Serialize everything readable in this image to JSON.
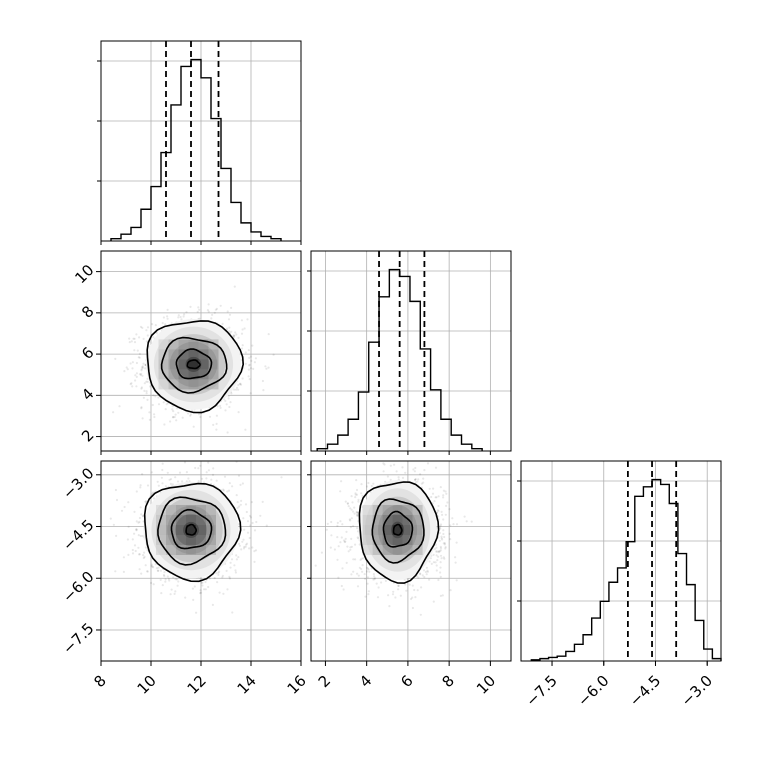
{
  "chart_data": {
    "type": "corner",
    "parameters": [
      {
        "index": 0,
        "range": [
          8,
          16
        ],
        "ticks": [
          8,
          10,
          12,
          14,
          16
        ],
        "tick_labels": [
          "8",
          "10",
          "12",
          "14",
          "16"
        ],
        "mean": 11.6,
        "std": 1.0,
        "quantiles": [
          10.6,
          11.6,
          12.7
        ]
      },
      {
        "index": 1,
        "range": [
          1.3,
          11.0
        ],
        "ticks": [
          2,
          4,
          6,
          8,
          10
        ],
        "tick_labels": [
          "2",
          "4",
          "6",
          "8",
          "10"
        ],
        "mean": 5.6,
        "std": 1.1,
        "quantiles": [
          4.6,
          5.6,
          6.8
        ]
      },
      {
        "index": 2,
        "range": [
          -8.4,
          -2.6
        ],
        "ticks": [
          -7.5,
          -6.0,
          -4.5,
          -3.0
        ],
        "tick_labels": [
          "−7.5",
          "−6.0",
          "−4.5",
          "−3.0"
        ],
        "mean": -4.6,
        "std": 0.7,
        "quantiles": [
          -5.3,
          -4.6,
          -3.9
        ]
      }
    ],
    "histograms": [
      {
        "param": 0,
        "bin_edges": [
          8.4,
          8.8,
          9.2,
          9.6,
          10.0,
          10.4,
          10.8,
          11.2,
          11.6,
          12.0,
          12.4,
          12.8,
          13.2,
          13.6,
          14.0,
          14.4,
          14.8,
          15.2
        ],
        "counts": [
          1,
          3,
          6,
          14,
          24,
          39,
          60,
          77,
          80,
          72,
          54,
          32,
          17,
          8,
          4,
          2,
          1
        ]
      },
      {
        "param": 1,
        "bin_edges": [
          1.6,
          2.1,
          2.6,
          3.1,
          3.6,
          4.1,
          4.6,
          5.1,
          5.6,
          6.1,
          6.6,
          7.1,
          7.6,
          8.1,
          8.6,
          9.1,
          9.6
        ],
        "counts": [
          1,
          3,
          7,
          14,
          26,
          48,
          68,
          80,
          77,
          66,
          45,
          27,
          14,
          7,
          3,
          1
        ]
      },
      {
        "param": 2,
        "bin_edges": [
          -8.1,
          -7.85,
          -7.6,
          -7.35,
          -7.1,
          -6.85,
          -6.6,
          -6.35,
          -6.1,
          -5.85,
          -5.6,
          -5.35,
          -5.1,
          -4.85,
          -4.6,
          -4.35,
          -4.1,
          -3.85,
          -3.6,
          -3.35,
          -3.1,
          -2.85,
          -2.6
        ],
        "counts": [
          0.5,
          1,
          1.5,
          2,
          4,
          7,
          11,
          18,
          25,
          33,
          39,
          50,
          69,
          73,
          76,
          74,
          66,
          45,
          32,
          17,
          5,
          1
        ]
      }
    ],
    "scatter_panels": [
      {
        "x_param": 0,
        "y_param": 1,
        "center": [
          11.7,
          5.5
        ],
        "contour_half_widths": [
          [
            0.25,
            0.2
          ],
          [
            0.7,
            0.7
          ],
          [
            1.3,
            1.3
          ],
          [
            1.9,
            2.2
          ]
        ]
      },
      {
        "x_param": 0,
        "y_param": 2,
        "center": [
          11.6,
          -4.6
        ],
        "contour_half_widths": [
          [
            0.2,
            0.15
          ],
          [
            0.8,
            0.55
          ],
          [
            1.35,
            0.95
          ],
          [
            1.9,
            1.4
          ]
        ]
      },
      {
        "x_param": 1,
        "y_param": 2,
        "center": [
          5.5,
          -4.6
        ],
        "contour_half_widths": [
          [
            0.2,
            0.15
          ],
          [
            0.7,
            0.5
          ],
          [
            1.25,
            0.9
          ],
          [
            1.9,
            1.45
          ]
        ]
      }
    ],
    "grid": true,
    "quantile_style": "dashed",
    "title": "",
    "xlabel": "",
    "ylabel": ""
  }
}
